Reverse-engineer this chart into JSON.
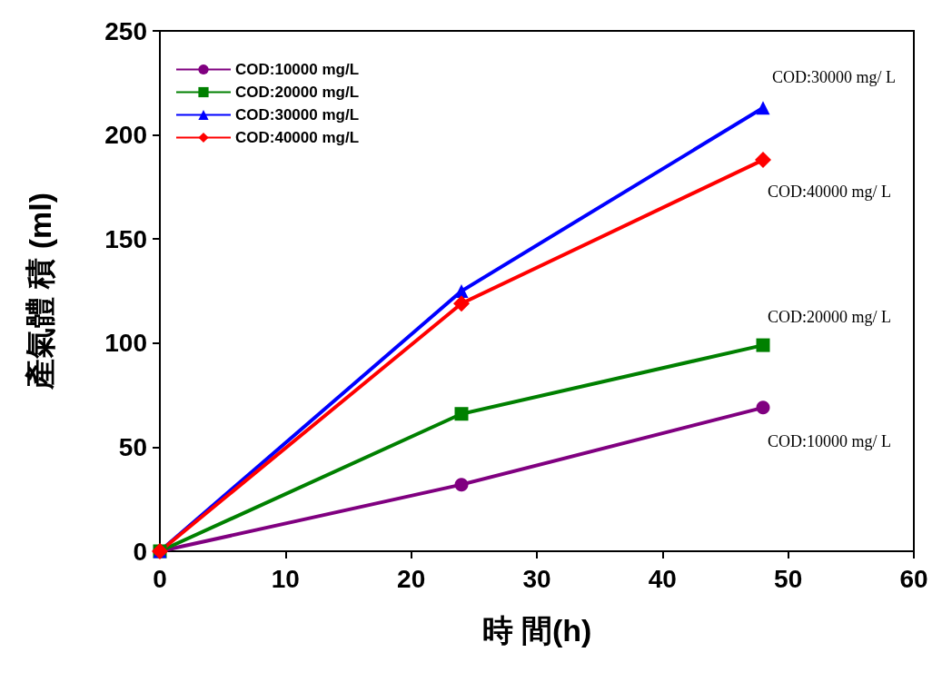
{
  "chart_data": {
    "type": "line",
    "xlabel": "時 間(h)",
    "ylabel": "產氣體 積 (ml)",
    "x": [
      0,
      24,
      48
    ],
    "series": [
      {
        "name": "COD:10000 mg/L",
        "color": "#800080",
        "marker": "circle",
        "values": [
          0,
          32,
          69
        ]
      },
      {
        "name": "COD:20000 mg/L",
        "color": "#008000",
        "marker": "square",
        "values": [
          0,
          66,
          99
        ]
      },
      {
        "name": "COD:30000 mg/L",
        "color": "#0000ff",
        "marker": "triangle",
        "values": [
          0,
          125,
          213
        ]
      },
      {
        "name": "COD:40000 mg/L",
        "color": "#ff0000",
        "marker": "diamond",
        "values": [
          0,
          119,
          188
        ]
      }
    ],
    "annotations": [
      "COD:30000 mg/ L",
      "COD:40000 mg/ L",
      "COD:20000 mg/ L",
      "COD:10000 mg/ L"
    ],
    "xlim": [
      0,
      60
    ],
    "xticks": [
      0,
      10,
      20,
      30,
      40,
      50,
      60
    ],
    "ylim": [
      0,
      250
    ],
    "yticks": [
      0,
      50,
      100,
      150,
      200,
      250
    ],
    "grid": false,
    "legend": "top left",
    "line_style": "solid"
  }
}
